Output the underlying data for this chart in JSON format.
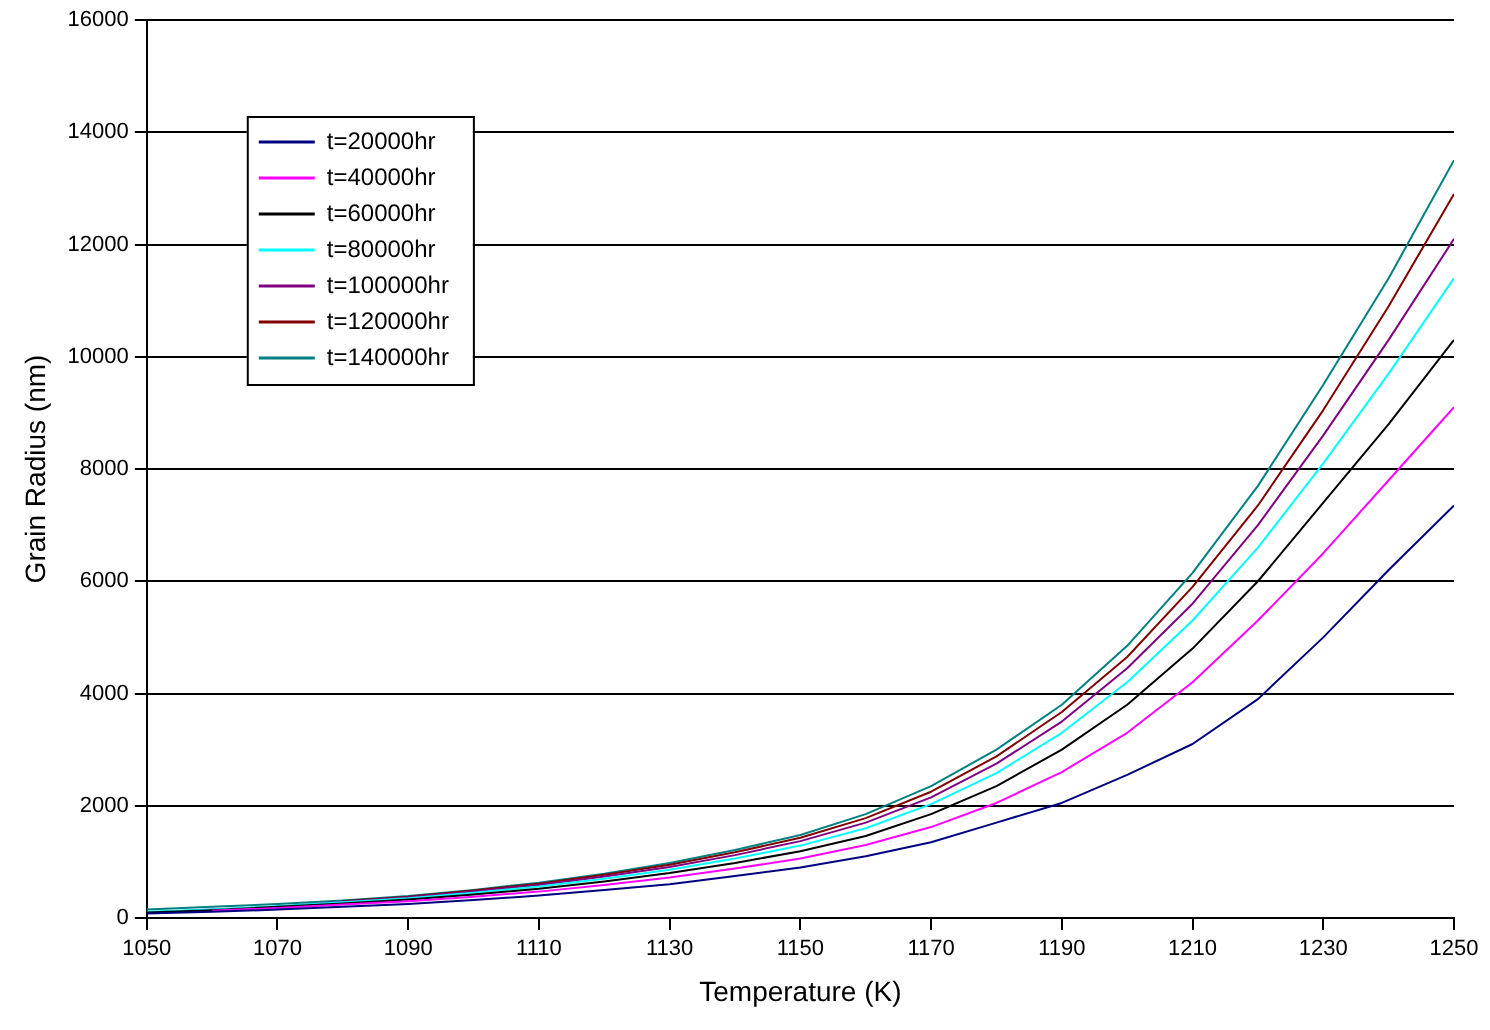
{
  "chart_data": {
    "type": "line",
    "xlabel": "Temperature (K)",
    "ylabel": "Grain Radius (nm)",
    "x": [
      1050,
      1060,
      1070,
      1080,
      1090,
      1100,
      1110,
      1120,
      1130,
      1140,
      1150,
      1160,
      1170,
      1180,
      1190,
      1200,
      1210,
      1220,
      1230,
      1240,
      1250
    ],
    "xlim": [
      1050,
      1250
    ],
    "xticks": [
      1050,
      1070,
      1090,
      1110,
      1130,
      1150,
      1170,
      1190,
      1210,
      1230,
      1250
    ],
    "ylim": [
      0,
      16000
    ],
    "yticks": [
      0,
      2000,
      4000,
      6000,
      8000,
      10000,
      12000,
      14000,
      16000
    ],
    "grid": "y",
    "legend": "top left",
    "marker": "none",
    "line_style": "solid",
    "series": [
      {
        "name": "t=20000hr",
        "color": "#000080",
        "values": [
          80,
          110,
          150,
          200,
          250,
          320,
          400,
          500,
          600,
          750,
          900,
          1100,
          1350,
          1700,
          2050,
          2550,
          3100,
          3900,
          5000,
          6200,
          7350
        ]
      },
      {
        "name": "t=40000hr",
        "color": "#ff00ff",
        "values": [
          null,
          130,
          180,
          240,
          300,
          380,
          470,
          590,
          720,
          880,
          1060,
          1300,
          1620,
          2050,
          2600,
          3300,
          4200,
          5300,
          6500,
          7800,
          9100
        ]
      },
      {
        "name": "t=60000hr",
        "color": "#000000",
        "values": [
          100,
          140,
          200,
          260,
          330,
          420,
          520,
          650,
          800,
          980,
          1190,
          1460,
          1850,
          2350,
          3000,
          3800,
          4800,
          6000,
          7400,
          8800,
          10300
        ]
      },
      {
        "name": "t=80000hr",
        "color": "#00ffff",
        "values": [
          110,
          150,
          210,
          280,
          350,
          450,
          560,
          700,
          860,
          1060,
          1290,
          1600,
          2030,
          2580,
          3300,
          4200,
          5300,
          6600,
          8100,
          9700,
          11400
        ]
      },
      {
        "name": "t=100000hr",
        "color": "#800080",
        "values": [
          100,
          150,
          200,
          290,
          370,
          470,
          590,
          740,
          910,
          1120,
          1370,
          1700,
          2150,
          2750,
          3500,
          4450,
          5600,
          7000,
          8600,
          10300,
          12100
        ]
      },
      {
        "name": "t=120000hr",
        "color": "#800000",
        "values": [
          null,
          null,
          null,
          300,
          380,
          490,
          610,
          770,
          950,
          1170,
          1430,
          1780,
          2250,
          2880,
          3670,
          4650,
          5900,
          7350,
          9050,
          10900,
          12900
        ]
      },
      {
        "name": "t=140000hr",
        "color": "#008080",
        "values": [
          150,
          200,
          250,
          310,
          390,
          500,
          630,
          790,
          980,
          1210,
          1480,
          1850,
          2350,
          3000,
          3800,
          4850,
          6150,
          7700,
          9500,
          11400,
          13500
        ]
      }
    ]
  }
}
